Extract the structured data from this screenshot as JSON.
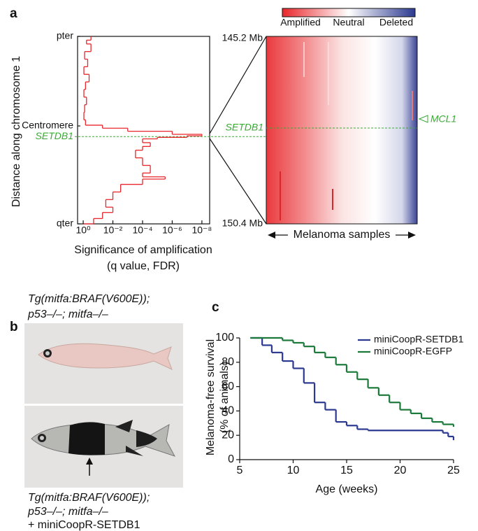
{
  "chart_data": [
    {
      "type": "profile",
      "panel": "a",
      "xlabel": "Significance of amplification",
      "xlabel_note": "(q value, FDR)",
      "ylabel": "Distance along chromosome 1",
      "log_x": true,
      "xlim": [
        2.4,
        3e-09
      ],
      "xticks": [
        {
          "value": 1,
          "label": "10⁰"
        },
        {
          "value": 0.01,
          "label": "10⁻²"
        },
        {
          "value": 0.0001,
          "label": "10⁻⁴"
        },
        {
          "value": 1e-06,
          "label": "10⁻⁶"
        },
        {
          "value": 1e-08,
          "label": "10⁻⁸"
        }
      ],
      "ylim": [
        0,
        247
      ],
      "yticks": [
        {
          "value": 0,
          "label": "pter"
        },
        {
          "value": 118,
          "label": "Centromere"
        },
        {
          "value": 132,
          "label": "SETDB1"
        },
        {
          "value": 247,
          "label": "qter"
        }
      ],
      "marker_color": "#3aaa35",
      "color": "#e8262b",
      "positions": [
        0,
        5,
        10,
        20,
        30,
        40,
        50,
        60,
        70,
        80,
        90,
        100,
        110,
        117,
        121,
        125,
        129,
        131,
        133,
        135,
        140,
        145,
        150,
        160,
        170,
        180,
        185,
        188,
        195,
        205,
        215,
        225,
        232,
        240,
        247
      ],
      "values": [
        0.3,
        0.6,
        0.3,
        0.8,
        0.5,
        0.9,
        0.4,
        0.7,
        0.9,
        0.6,
        0.8,
        0.9,
        0.7,
        0.05,
        0.001,
        1e-06,
        1e-08,
        1e-07,
        1e-05,
        0.0001,
        3e-05,
        0.0001,
        0.0003,
        0.0001,
        3e-05,
        0.0001,
        3e-06,
        0.0001,
        0.003,
        0.01,
        0.03,
        0.01,
        0.05,
        0.2,
        0.9
      ]
    },
    {
      "type": "heatmap",
      "top_label": "145.2 Mb",
      "bottom_label": "150.4 Mb",
      "colorbar_labels": [
        "Amplified",
        "Neutral",
        "Deleted"
      ],
      "xlabel": "Melanoma samples",
      "row_label": "SETDB1",
      "annotation": "MCL1"
    },
    {
      "type": "survival",
      "panel": "c",
      "xlabel": "Age (weeks)",
      "ylabel": "Melanoma-free survival",
      "ylabel_note": "(% of animals)",
      "xlim": [
        5,
        25
      ],
      "xticks": [
        5,
        10,
        15,
        20,
        25
      ],
      "ylim": [
        0,
        100
      ],
      "yticks": [
        0,
        20,
        40,
        60,
        80,
        100
      ],
      "series": [
        {
          "name": "miniCoopR-SETDB1",
          "color": "#2b3990",
          "x": [
            6,
            7.1,
            8,
            9,
            10,
            11,
            12,
            13,
            14,
            15,
            16,
            17,
            24,
            24.5,
            25
          ],
          "values": [
            100,
            94,
            88,
            81,
            75,
            63,
            47,
            41,
            31,
            28,
            25,
            24,
            22,
            19,
            16
          ]
        },
        {
          "name": "miniCoopR-EGFP",
          "color": "#1b7a3a",
          "x": [
            6,
            9,
            10,
            11,
            12,
            13,
            14,
            15,
            16,
            17,
            18,
            19,
            20,
            21,
            22,
            23,
            24,
            25
          ],
          "values": [
            100,
            98,
            96,
            93,
            88,
            84,
            78,
            72,
            66,
            59,
            53,
            47,
            41,
            38,
            34,
            31,
            29,
            27
          ]
        }
      ]
    }
  ],
  "photo_panel": {
    "panel": "b",
    "caption_top": [
      "Tg(mitfa:BRAF(V600E));",
      "p53–/–; mitfa–/–"
    ],
    "caption_bottom": [
      "Tg(mitfa:BRAF(V600E));",
      "p53–/–; mitfa–/–",
      "+ miniCoopR-SETDB1"
    ]
  }
}
